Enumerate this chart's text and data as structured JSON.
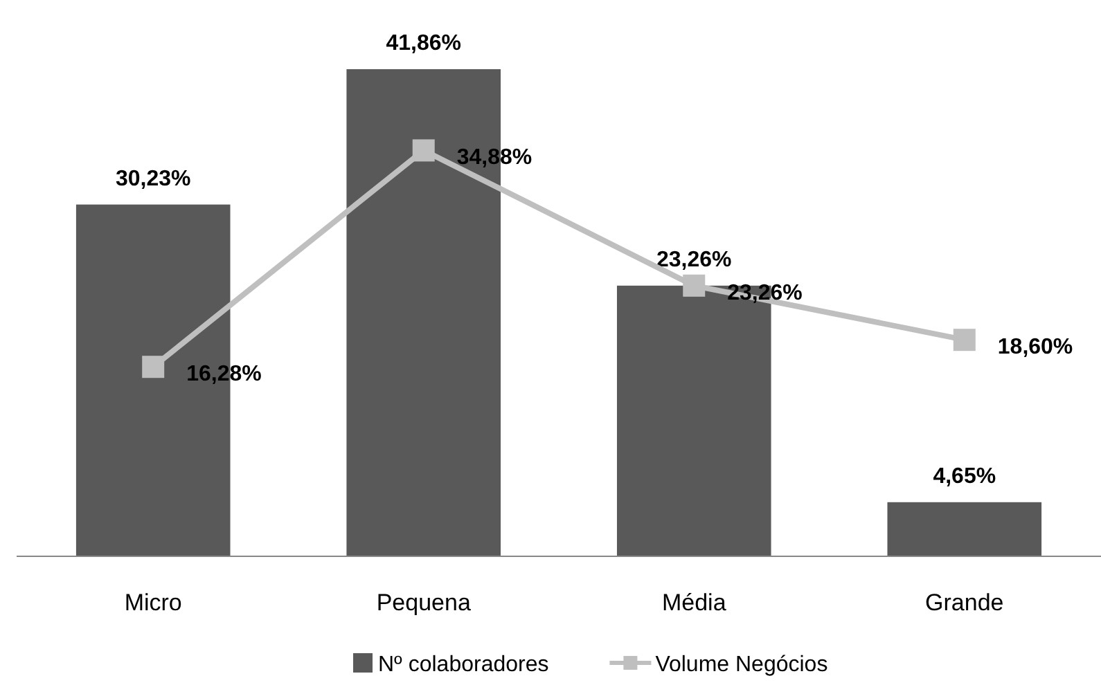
{
  "chart_data": {
    "type": "bar",
    "categories": [
      "Micro",
      "Pequena",
      "Média",
      "Grande"
    ],
    "legend": "bottom",
    "marker": "square",
    "series": [
      {
        "name": "Nº colaboradores",
        "color": "#595959",
        "values": [
          30.23,
          41.86,
          23.26,
          4.65
        ],
        "value_labels": [
          "30,23%",
          "41,86%",
          "23,26%",
          "4,65%"
        ]
      },
      {
        "name": "Volume Negócios",
        "type": "line",
        "color": "#bfbfbf",
        "values": [
          16.28,
          34.88,
          23.26,
          18.6
        ],
        "value_labels": [
          "16,28%",
          "34,88%",
          "23,26%",
          "18,60%"
        ]
      }
    ]
  }
}
